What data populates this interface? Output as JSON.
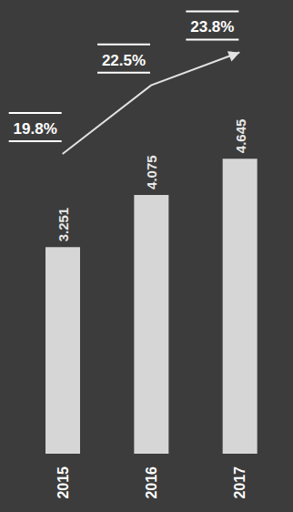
{
  "chart_data": {
    "type": "bar",
    "categories": [
      "2015",
      "2016",
      "2017"
    ],
    "series": [
      {
        "type": "bar",
        "color": "#d6d6d6",
        "values": [
          3.251,
          4.075,
          4.645
        ]
      },
      {
        "type": "line",
        "axis": "y2",
        "color": "#e2e2e2",
        "marker": "arrow",
        "values": [
          19.8,
          22.5,
          23.8
        ],
        "value_labels": [
          "19.8%",
          "22.5%",
          "23.8%"
        ]
      }
    ],
    "ylim": [
      0,
      7
    ],
    "y2lim": [
      8,
      25.5
    ],
    "data_labels": true,
    "tick_labels": "x"
  }
}
